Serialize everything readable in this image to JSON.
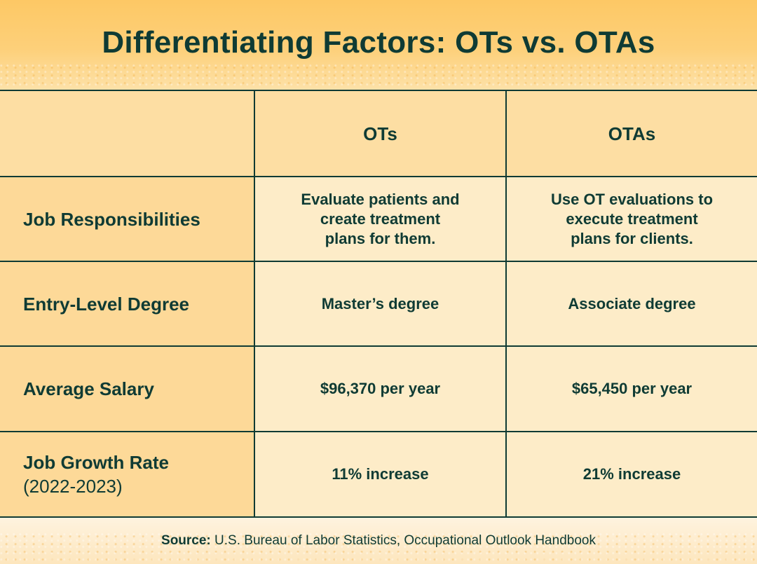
{
  "title": "Differentiating Factors: OTs vs. OTAs",
  "table": {
    "headers": [
      "",
      "OTs",
      "OTAs"
    ],
    "rows": [
      {
        "label": "Job Responsibilities",
        "sublabel": "",
        "ot": "Evaluate patients and create treatment plans for them.",
        "ota": "Use OT evaluations to execute treatment plans for clients."
      },
      {
        "label": "Entry-Level Degree",
        "sublabel": "",
        "ot": "Master’s degree",
        "ota": "Associate degree"
      },
      {
        "label": "Average Salary",
        "sublabel": "",
        "ot": "$96,370 per year",
        "ota": "$65,450 per year"
      },
      {
        "label": "Job Growth Rate",
        "sublabel": "(2022-2023)",
        "ot": "11% increase",
        "ota": "21% increase"
      }
    ]
  },
  "footer": {
    "source_label": "Source:",
    "source_text": "U.S. Bureau of Labor Statistics, Occupational Outlook Handbook"
  },
  "colors": {
    "ink": "#0f3b34",
    "header_gold": "#fdc865",
    "label_column": "#fdd998",
    "value_cells": "#fdecc8"
  }
}
